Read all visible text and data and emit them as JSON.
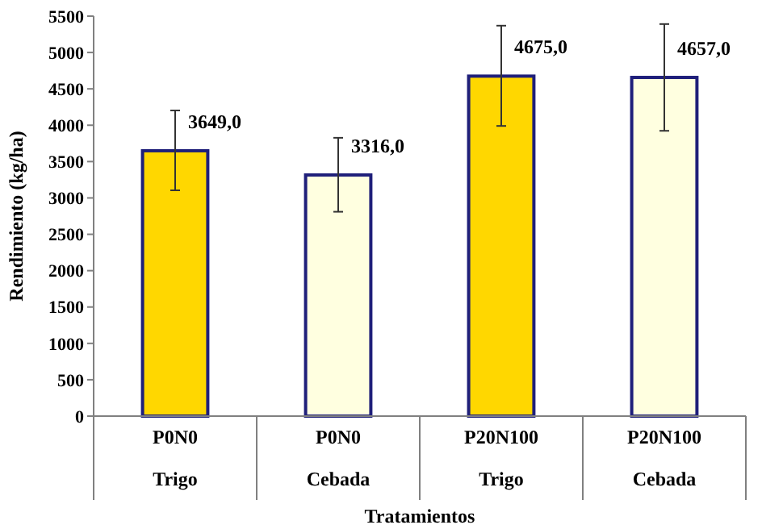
{
  "chart_data": {
    "type": "bar",
    "xlabel": "Tratamientos",
    "ylabel": "Rendimiento (kg/ha)",
    "categories": [
      "P0N0\nTrigo",
      "P0N0\nCebada",
      "P20N100\nTrigo",
      "P20N100\nCebada"
    ],
    "values": [
      3649,
      3316,
      4675,
      4657
    ],
    "colors": [
      "#ffd700",
      "#ffffe0",
      "#ffd700",
      "#ffffe0"
    ],
    "errors": [
      [
        3105,
        4203
      ],
      [
        2810,
        3827
      ],
      [
        3990,
        5369
      ],
      [
        3923,
        5391
      ]
    ],
    "value_labels": [
      "3649,0",
      "3316,0",
      "4675,0",
      "4657,0"
    ],
    "ylim": [
      0,
      5500
    ],
    "yticks": [
      0,
      500,
      1000,
      1500,
      2000,
      2500,
      3000,
      3500,
      4000,
      4500,
      5000,
      5500
    ],
    "grid": false
  }
}
